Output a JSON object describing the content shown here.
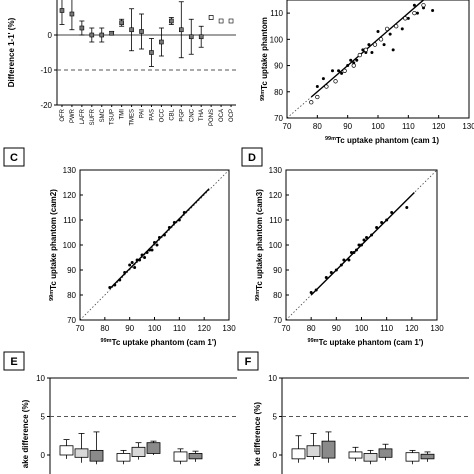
{
  "chart_data": [
    {
      "id": "A",
      "type": "scatter",
      "panel_label": "",
      "ylabel": "Difference 1-1' (%)",
      "ylim": [
        -20,
        10
      ],
      "yticks": [
        -20,
        -10,
        0
      ],
      "reference_lines": [
        0,
        -10
      ],
      "categories": [
        "OFR",
        "PWR",
        "LAFR",
        "SUFR",
        "SMC",
        "TSUP",
        "TMI",
        "TMES",
        "PAI",
        "PAS",
        "OCC",
        "CBL",
        "PGP",
        "CNC",
        "THA",
        "PONS",
        "OCA",
        "OCP"
      ],
      "values": [
        7,
        6,
        2,
        0,
        0,
        0.5,
        3.5,
        1.5,
        1,
        -5,
        -2,
        4,
        1.5,
        -0.5,
        -0.5,
        5,
        null,
        null
      ],
      "errors": [
        4,
        4.5,
        2,
        2,
        2,
        0.5,
        1,
        6,
        5,
        4,
        4,
        1,
        8,
        5,
        3,
        0,
        0,
        0
      ],
      "open_square_values": [
        null,
        null,
        null,
        null,
        null,
        null,
        null,
        null,
        null,
        null,
        null,
        null,
        null,
        null,
        null,
        5,
        4,
        4
      ]
    },
    {
      "id": "B",
      "type": "scatter",
      "panel_label": "",
      "xlabel": "Tc uptake phantom (cam 1)",
      "xlabel_prefix": "99m",
      "ylabel": "Tc uptake phantom",
      "ylabel_prefix": "99m",
      "xlim": [
        70,
        130
      ],
      "xticks": [
        70,
        80,
        90,
        100,
        110,
        120,
        130
      ],
      "ylim": [
        70,
        115
      ],
      "yticks": [
        70,
        80,
        90,
        100,
        110
      ],
      "series": [
        {
          "marker": "filled",
          "x": [
            80,
            82,
            85,
            87,
            88,
            90,
            91,
            92,
            93,
            95,
            96,
            97,
            98,
            100,
            101,
            102,
            104,
            105,
            108,
            110,
            112,
            113,
            115,
            118
          ],
          "y": [
            82,
            85,
            88,
            88,
            87,
            90,
            92,
            91,
            92,
            96,
            95,
            98,
            95,
            103,
            100,
            98,
            102,
            96,
            104,
            108,
            113,
            110,
            112,
            111
          ]
        },
        {
          "marker": "open",
          "x": [
            78,
            80,
            83,
            86,
            89,
            92,
            94,
            96,
            99,
            101,
            103,
            106,
            109,
            112,
            115
          ],
          "y": [
            76,
            78,
            82,
            84,
            88,
            90,
            94,
            96,
            98,
            100,
            104,
            105,
            108,
            110,
            113
          ]
        }
      ]
    },
    {
      "id": "C",
      "type": "scatter",
      "panel_label": "C",
      "xlabel": "Tc uptake phantom (cam 1')",
      "xlabel_prefix": "99m",
      "ylabel": "Tc uptake phantom (cam2)",
      "ylabel_prefix": "99m",
      "xlim": [
        70,
        130
      ],
      "xticks": [
        70,
        80,
        90,
        100,
        110,
        120,
        130
      ],
      "ylim": [
        70,
        130
      ],
      "yticks": [
        70,
        80,
        90,
        100,
        110,
        120,
        130
      ],
      "x": [
        82,
        84,
        86,
        88,
        90,
        91,
        92,
        93,
        94,
        95,
        96,
        97,
        98,
        99,
        100,
        101,
        102,
        104,
        106,
        108,
        110,
        112
      ],
      "y": [
        83,
        84,
        86,
        89,
        92,
        93,
        91,
        94,
        94,
        96,
        95,
        97,
        98,
        98,
        101,
        100,
        103,
        104,
        107,
        109,
        110,
        113
      ]
    },
    {
      "id": "D",
      "type": "scatter",
      "panel_label": "D",
      "xlabel": "Tc uptake phantom (cam 1')",
      "xlabel_prefix": "99m",
      "ylabel": "Tc uptake phantom (cam3)",
      "ylabel_prefix": "99m",
      "xlim": [
        70,
        130
      ],
      "xticks": [
        70,
        80,
        90,
        100,
        110,
        120,
        130
      ],
      "ylim": [
        70,
        130
      ],
      "yticks": [
        70,
        80,
        90,
        100,
        110,
        120,
        130
      ],
      "x": [
        80,
        82,
        86,
        88,
        90,
        92,
        93,
        95,
        96,
        97,
        98,
        99,
        100,
        101,
        102,
        104,
        106,
        108,
        110,
        112,
        118
      ],
      "y": [
        81,
        82,
        87,
        89,
        90,
        92,
        94,
        94,
        97,
        97,
        98,
        100,
        100,
        102,
        103,
        104,
        107,
        109,
        110,
        113,
        115
      ]
    },
    {
      "id": "E",
      "type": "box",
      "panel_label": "E",
      "ylabel": "ake difference (%)",
      "ylim": [
        0,
        10
      ],
      "yticks": [
        0,
        5,
        10
      ],
      "reference_lines": [
        5
      ],
      "boxes": [
        {
          "q1": 0,
          "q3": 1.2,
          "min": -0.5,
          "max": 2.0,
          "fill": "white"
        },
        {
          "q1": -0.3,
          "q3": 0.8,
          "min": -1.0,
          "max": 2.8,
          "fill": "lightgray"
        },
        {
          "q1": -0.8,
          "q3": 0.6,
          "min": -1.2,
          "max": 3.0,
          "fill": "gray"
        },
        {
          "q1": -0.8,
          "q3": 0.2,
          "min": -1.2,
          "max": 0.6,
          "fill": "white"
        },
        {
          "q1": -0.2,
          "q3": 1.0,
          "min": -0.6,
          "max": 1.6,
          "fill": "lightgray"
        },
        {
          "q1": 0.2,
          "q3": 1.6,
          "min": 0,
          "max": 1.8,
          "fill": "gray"
        },
        {
          "q1": -0.8,
          "q3": 0.4,
          "min": -1.2,
          "max": 0.8,
          "fill": "white"
        },
        {
          "q1": -0.5,
          "q3": 0.2,
          "min": -0.9,
          "max": 0.5,
          "fill": "gray"
        }
      ]
    },
    {
      "id": "F",
      "type": "box",
      "panel_label": "F",
      "ylabel": "ke difference (%)",
      "ylim": [
        0,
        10
      ],
      "yticks": [
        0,
        5,
        10
      ],
      "reference_lines": [
        5
      ],
      "boxes": [
        {
          "q1": -0.5,
          "q3": 0.8,
          "min": -1.0,
          "max": 2.5,
          "fill": "white"
        },
        {
          "q1": -0.2,
          "q3": 1.2,
          "min": -0.6,
          "max": 2.8,
          "fill": "lightgray"
        },
        {
          "q1": -0.4,
          "q3": 1.8,
          "min": -1.0,
          "max": 3.0,
          "fill": "gray"
        },
        {
          "q1": -0.4,
          "q3": 0.4,
          "min": -0.8,
          "max": 1.0,
          "fill": "white"
        },
        {
          "q1": -0.8,
          "q3": 0.2,
          "min": -1.2,
          "max": 0.6,
          "fill": "lightgray"
        },
        {
          "q1": -0.3,
          "q3": 0.8,
          "min": -0.7,
          "max": 1.4,
          "fill": "gray"
        },
        {
          "q1": -0.8,
          "q3": 0.3,
          "min": -1.2,
          "max": 0.6,
          "fill": "white"
        },
        {
          "q1": -0.5,
          "q3": 0.1,
          "min": -0.9,
          "max": 0.4,
          "fill": "gray"
        }
      ]
    }
  ],
  "colors": {
    "white": "#ffffff",
    "lightgray": "#d8d8d8",
    "gray": "#8a8a8a",
    "ink": "#000000",
    "dash": "#555555"
  }
}
